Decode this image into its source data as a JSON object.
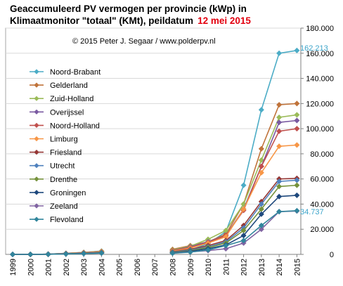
{
  "chart_data": {
    "type": "line",
    "title_line1": "Geaccumuleerd PV vermogen per provincie (kWp) in",
    "title_line2_main": "Klimaatmonitor \"totaal\" (KMt), peildatum",
    "title_line2_date": "12 mei 2015",
    "copyright": "© 2015 Peter J. Segaar / www.polderpv.nl",
    "x": [
      "1999",
      "2000",
      "2001",
      "2002",
      "2003",
      "2004",
      "2005",
      "2006",
      "2007",
      "2008",
      "2009",
      "2010",
      "2011",
      "2012",
      "2013",
      "2014",
      "2015"
    ],
    "ylim": [
      0,
      180000
    ],
    "yticks": [
      "0",
      "20.000",
      "40.000",
      "60.000",
      "80.000",
      "100.000",
      "120.000",
      "140.000",
      "160.000",
      "180.000"
    ],
    "grid": true,
    "legend_position": "left",
    "annotations": {
      "top": "162.213",
      "bottom": "34.737"
    },
    "colors": {
      "title_date": "#e3000f",
      "annotation": "#3aa3c9"
    },
    "series": [
      {
        "name": "Noord-Brabant",
        "color": "#4bacc6",
        "values": [
          0,
          0,
          200,
          900,
          1600,
          2600,
          null,
          null,
          null,
          1500,
          3500,
          8500,
          18000,
          55000,
          115000,
          160000,
          162213
        ]
      },
      {
        "name": "Gelderland",
        "color": "#c0733a",
        "values": [
          0,
          0,
          200,
          800,
          1500,
          2500,
          null,
          null,
          null,
          4000,
          7000,
          10000,
          16000,
          40000,
          84000,
          119000,
          120000
        ]
      },
      {
        "name": "Zuid-Holland",
        "color": "#9bbb59",
        "values": [
          0,
          0,
          200,
          800,
          1500,
          2500,
          null,
          null,
          null,
          3500,
          6500,
          12000,
          19000,
          40000,
          75000,
          109000,
          111000
        ]
      },
      {
        "name": "Overijssel",
        "color": "#7a5aa1",
        "values": [
          0,
          0,
          200,
          700,
          1300,
          2200,
          null,
          null,
          null,
          3000,
          6000,
          10000,
          15000,
          36000,
          70000,
          105000,
          106500
        ]
      },
      {
        "name": "Noord-Holland",
        "color": "#c0504d",
        "values": [
          0,
          0,
          200,
          700,
          1300,
          2200,
          null,
          null,
          null,
          3000,
          5500,
          9500,
          15000,
          35000,
          70000,
          98000,
          100000
        ]
      },
      {
        "name": "Limburg",
        "color": "#f79646",
        "values": [
          0,
          0,
          150,
          600,
          1100,
          2000,
          null,
          null,
          null,
          2500,
          5000,
          9000,
          14000,
          36000,
          65000,
          86000,
          87000
        ]
      },
      {
        "name": "Friesland",
        "color": "#953735",
        "values": [
          0,
          0,
          150,
          500,
          900,
          1500,
          null,
          null,
          null,
          2000,
          4000,
          7000,
          11000,
          23000,
          42000,
          60000,
          60500
        ]
      },
      {
        "name": "Utrecht",
        "color": "#4f81bd",
        "values": [
          0,
          0,
          150,
          500,
          900,
          1500,
          null,
          null,
          null,
          1800,
          3500,
          6000,
          10000,
          21000,
          40000,
          58000,
          59000
        ]
      },
      {
        "name": "Drenthe",
        "color": "#76923c",
        "values": [
          0,
          0,
          100,
          400,
          800,
          1300,
          null,
          null,
          null,
          1500,
          3000,
          5500,
          9000,
          19000,
          36000,
          54000,
          55000
        ]
      },
      {
        "name": "Groningen",
        "color": "#1f497d",
        "values": [
          0,
          0,
          100,
          400,
          700,
          1200,
          null,
          null,
          null,
          1200,
          2500,
          4500,
          7500,
          15000,
          32000,
          46000,
          47000
        ]
      },
      {
        "name": "Zeeland",
        "color": "#8064a2",
        "values": [
          0,
          0,
          100,
          300,
          600,
          1000,
          null,
          null,
          null,
          1000,
          2000,
          3000,
          4500,
          9000,
          20000,
          34000,
          34500
        ]
      },
      {
        "name": "Flevoland",
        "color": "#31859c",
        "values": [
          0,
          0,
          100,
          300,
          600,
          1000,
          null,
          null,
          null,
          900,
          1800,
          3500,
          7000,
          11000,
          23000,
          34000,
          34737
        ]
      }
    ]
  }
}
